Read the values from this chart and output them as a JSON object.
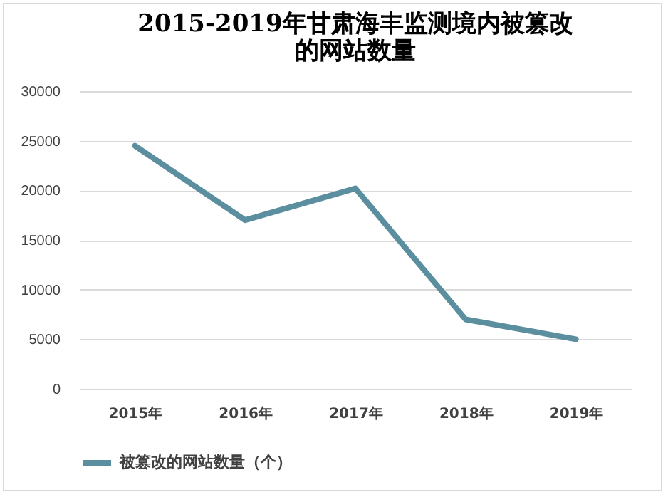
{
  "chart_data": {
    "type": "line",
    "title": "2015-2019年甘肃海丰监测境内被篡改的网站数量",
    "categories": [
      "2015年",
      "2016年",
      "2017年",
      "2018年",
      "2019年"
    ],
    "series": [
      {
        "name": "被篡改的网站数量（个）",
        "color": "#5b8fa0",
        "values": [
          24500,
          17000,
          20200,
          7000,
          5000
        ]
      }
    ],
    "ylim": [
      0,
      30000
    ],
    "yticks": [
      0,
      5000,
      10000,
      15000,
      20000,
      25000,
      30000
    ],
    "grid": "y",
    "legend": "bottom",
    "marker": "none",
    "line_style": "solid"
  }
}
